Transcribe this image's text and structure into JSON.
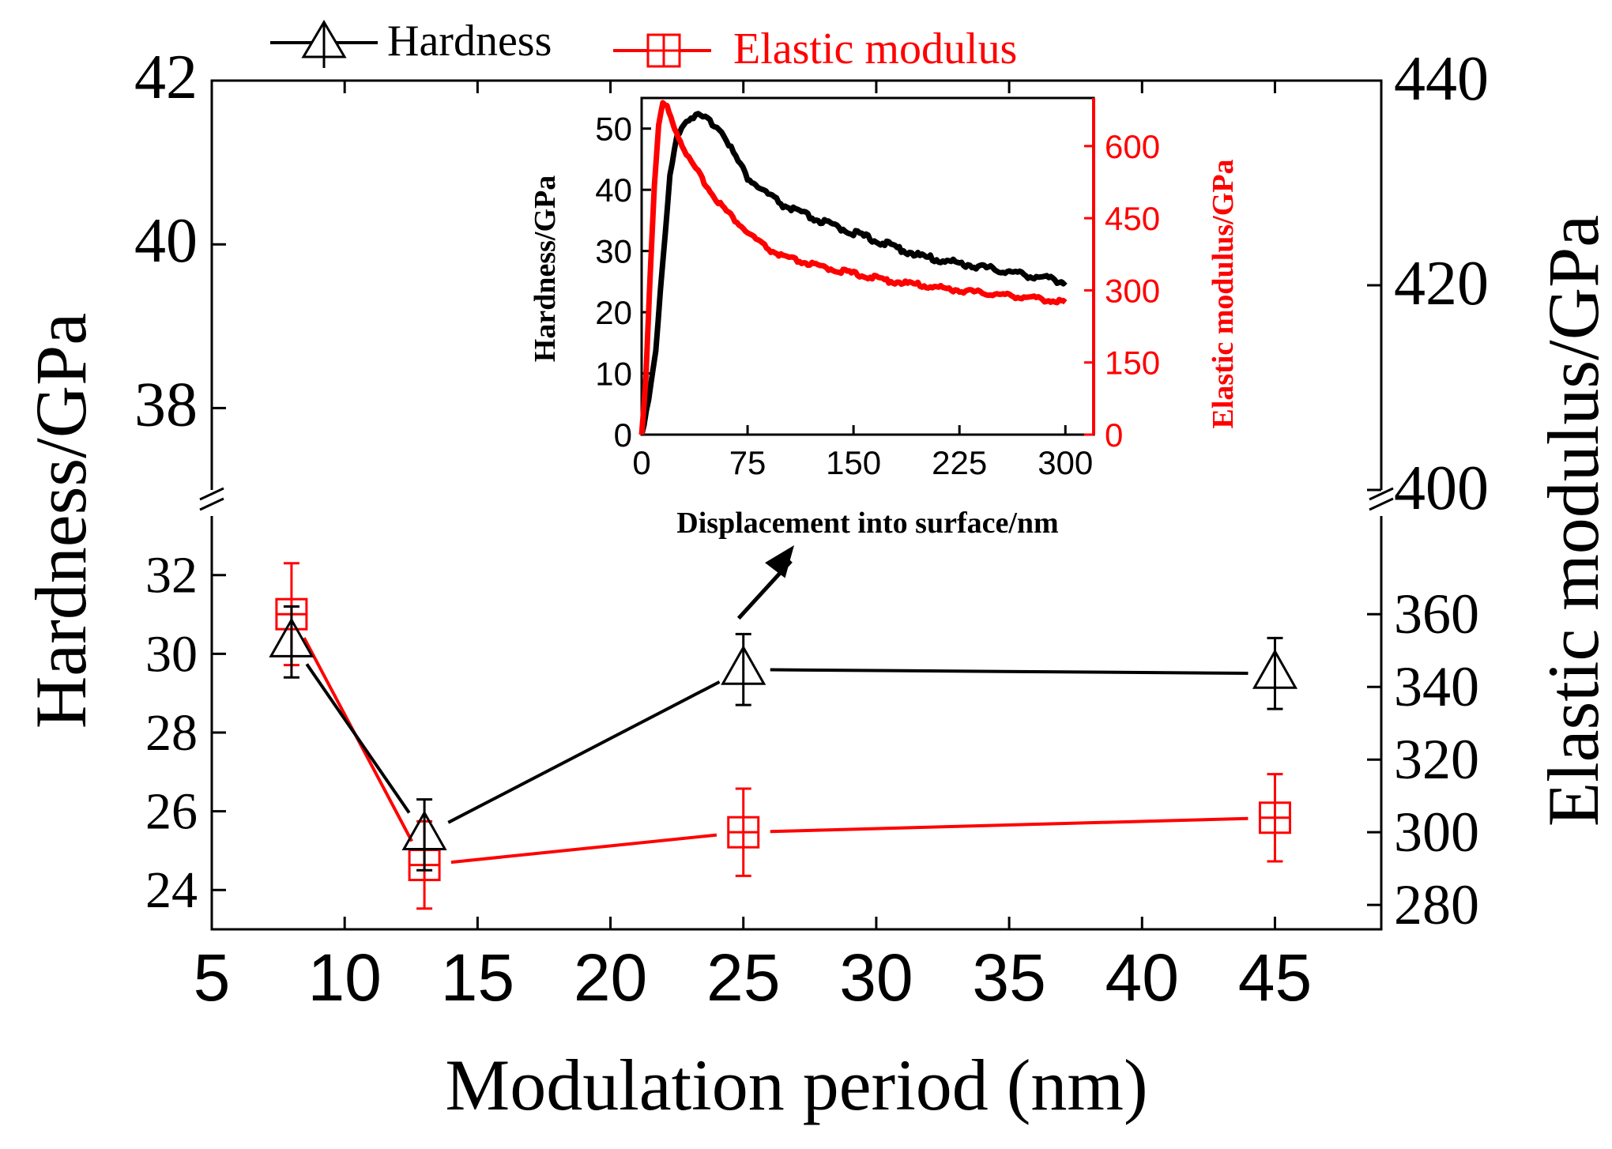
{
  "colors": {
    "hardness": "#000000",
    "modulus": "#ff0000",
    "background": "#ffffff"
  },
  "chart_data": [
    {
      "type": "line",
      "title": "",
      "xlabel": "Modulation period (nm)",
      "ylabel_left": "Hardness/GPa",
      "ylabel_right": "Elastic modulus/GPa",
      "xlim": [
        5,
        49
      ],
      "xticks": [
        5,
        10,
        15,
        20,
        25,
        30,
        35,
        40,
        45
      ],
      "x": [
        8,
        13,
        25,
        45
      ],
      "y_left_break": {
        "lower": [
          23,
          33.5
        ],
        "upper": [
          37,
          42
        ]
      },
      "y_left_ticks_lower": [
        24,
        26,
        28,
        30,
        32
      ],
      "y_left_ticks_upper": [
        38,
        40,
        42
      ],
      "y_right_break": {
        "lower": [
          273.3,
          387
        ],
        "upper": [
          400,
          440
        ]
      },
      "y_right_ticks_lower": [
        280,
        300,
        320,
        340,
        360
      ],
      "y_right_ticks_upper": [
        400,
        420,
        440
      ],
      "legend": [
        "Hardness",
        "Elastic modulus"
      ],
      "series": [
        {
          "name": "Hardness",
          "axis": "left",
          "marker": "triangle",
          "values": [
            30.3,
            25.4,
            29.6,
            29.5
          ],
          "errors": [
            0.9,
            0.9,
            0.9,
            0.9
          ]
        },
        {
          "name": "Elastic modulus",
          "axis": "right",
          "marker": "square-cross",
          "values": [
            360,
            291,
            300,
            304
          ],
          "errors": [
            14,
            12,
            12,
            12
          ]
        }
      ],
      "arrow": {
        "from_x": 25,
        "from_y": 30.5,
        "to": "inset"
      }
    },
    {
      "type": "line",
      "title": "",
      "xlabel": "Displacement into surface/nm",
      "ylabel_left": "Hardness/GPa",
      "ylabel_right": "Elastic modulus/GPa",
      "xlim": [
        0,
        320
      ],
      "xticks": [
        0,
        75,
        150,
        225,
        300
      ],
      "ylim_left": [
        0,
        55
      ],
      "yticks_left": [
        0,
        10,
        20,
        30,
        40,
        50
      ],
      "ylim_right": [
        0,
        700
      ],
      "yticks_right": [
        0,
        150,
        300,
        450,
        600
      ],
      "series": [
        {
          "name": "Hardness",
          "axis": "left",
          "x": [
            0,
            5,
            10,
            15,
            20,
            25,
            30,
            35,
            40,
            45,
            50,
            55,
            60,
            65,
            70,
            75,
            85,
            100,
            125,
            150,
            175,
            200,
            225,
            250,
            275,
            300
          ],
          "values": [
            0,
            6,
            14,
            28,
            42,
            49,
            51,
            52,
            52,
            51.5,
            51,
            50,
            48.5,
            46,
            44,
            42,
            40,
            37.5,
            35,
            33,
            31,
            29,
            28,
            27,
            26,
            25
          ]
        },
        {
          "name": "Elastic modulus",
          "axis": "right",
          "x": [
            0,
            3,
            6,
            9,
            12,
            15,
            18,
            22,
            26,
            30,
            35,
            40,
            50,
            60,
            75,
            90,
            100,
            125,
            150,
            175,
            200,
            225,
            250,
            275,
            300
          ],
          "values": [
            0,
            120,
            330,
            520,
            640,
            690,
            680,
            650,
            620,
            595,
            565,
            545,
            500,
            465,
            420,
            385,
            370,
            350,
            335,
            320,
            310,
            300,
            292,
            285,
            275
          ]
        }
      ]
    }
  ]
}
